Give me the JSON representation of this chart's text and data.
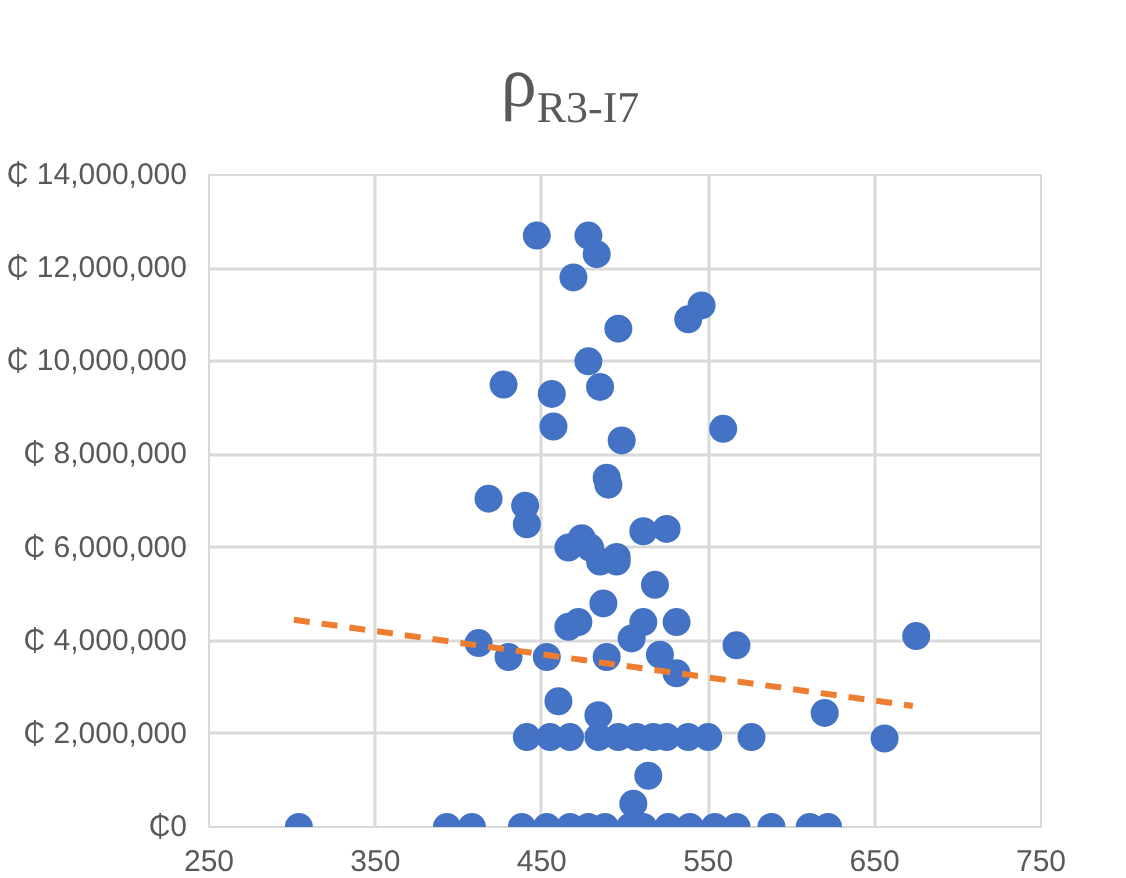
{
  "chart_data": {
    "type": "scatter",
    "title": "ρ$_{R3-I7}$",
    "series": [
      {
        "color": "#4472c4",
        "marker": "circle",
        "x": [
          304,
          393,
          408,
          438,
          453,
          467,
          478,
          488,
          503,
          511,
          526,
          539,
          554,
          567,
          588,
          611,
          622,
          505,
          514,
          441,
          455,
          467,
          484,
          496,
          507,
          517,
          525,
          538,
          550,
          576,
          484,
          460,
          620,
          656,
          675,
          567,
          412,
          430,
          453,
          466,
          472,
          487,
          489,
          504,
          511,
          521,
          531,
          531,
          518,
          485,
          495,
          447,
          478,
          483,
          469,
          546,
          538,
          496,
          478,
          427,
          485,
          456,
          457,
          559,
          498,
          489,
          490,
          418,
          440,
          441,
          511,
          525,
          466,
          474,
          479,
          495
        ],
        "values": [
          0,
          0,
          0,
          0,
          0,
          0,
          0,
          0,
          0,
          0,
          0,
          0,
          0,
          0,
          0,
          0,
          0,
          500000,
          1100000,
          1930000,
          1930000,
          1930000,
          1930000,
          1930000,
          1930000,
          1930000,
          1930000,
          1930000,
          1930000,
          1930000,
          2400000,
          2700000,
          2450000,
          1900000,
          4100000,
          3900000,
          3950000,
          3650000,
          3650000,
          4300000,
          4400000,
          4800000,
          3650000,
          4050000,
          4400000,
          3700000,
          4400000,
          3300000,
          5200000,
          5700000,
          5700000,
          12700000,
          12700000,
          12300000,
          11800000,
          11200000,
          10900000,
          10700000,
          10000000,
          9500000,
          9450000,
          9300000,
          8600000,
          8550000,
          8300000,
          7500000,
          7350000,
          7050000,
          6900000,
          6500000,
          6350000,
          6400000,
          6000000,
          6200000,
          6000000,
          5800000
        ]
      },
      {
        "type": "line",
        "color": "#ed7d31",
        "line_style": "dashed",
        "x": [
          301,
          673
        ],
        "values": [
          4450000,
          2600000
        ]
      }
    ],
    "xlim": [
      250,
      750
    ],
    "xticks": [
      250,
      350,
      450,
      550,
      650,
      750
    ],
    "ylim": [
      0,
      14000000
    ],
    "yticks": [
      {
        "value": 0,
        "label": "₵0"
      },
      {
        "value": 2000000,
        "label": "₵ 2,000,000"
      },
      {
        "value": 4000000,
        "label": "₵ 4,000,000"
      },
      {
        "value": 6000000,
        "label": "₵ 6,000,000"
      },
      {
        "value": 8000000,
        "label": "₵ 8,000,000"
      },
      {
        "value": 10000000,
        "label": "₵ 10,000,000"
      },
      {
        "value": 12000000,
        "label": "₵ 12,000,000"
      },
      {
        "value": 14000000,
        "label": "₵ 14,000,000"
      }
    ],
    "grid": true
  }
}
